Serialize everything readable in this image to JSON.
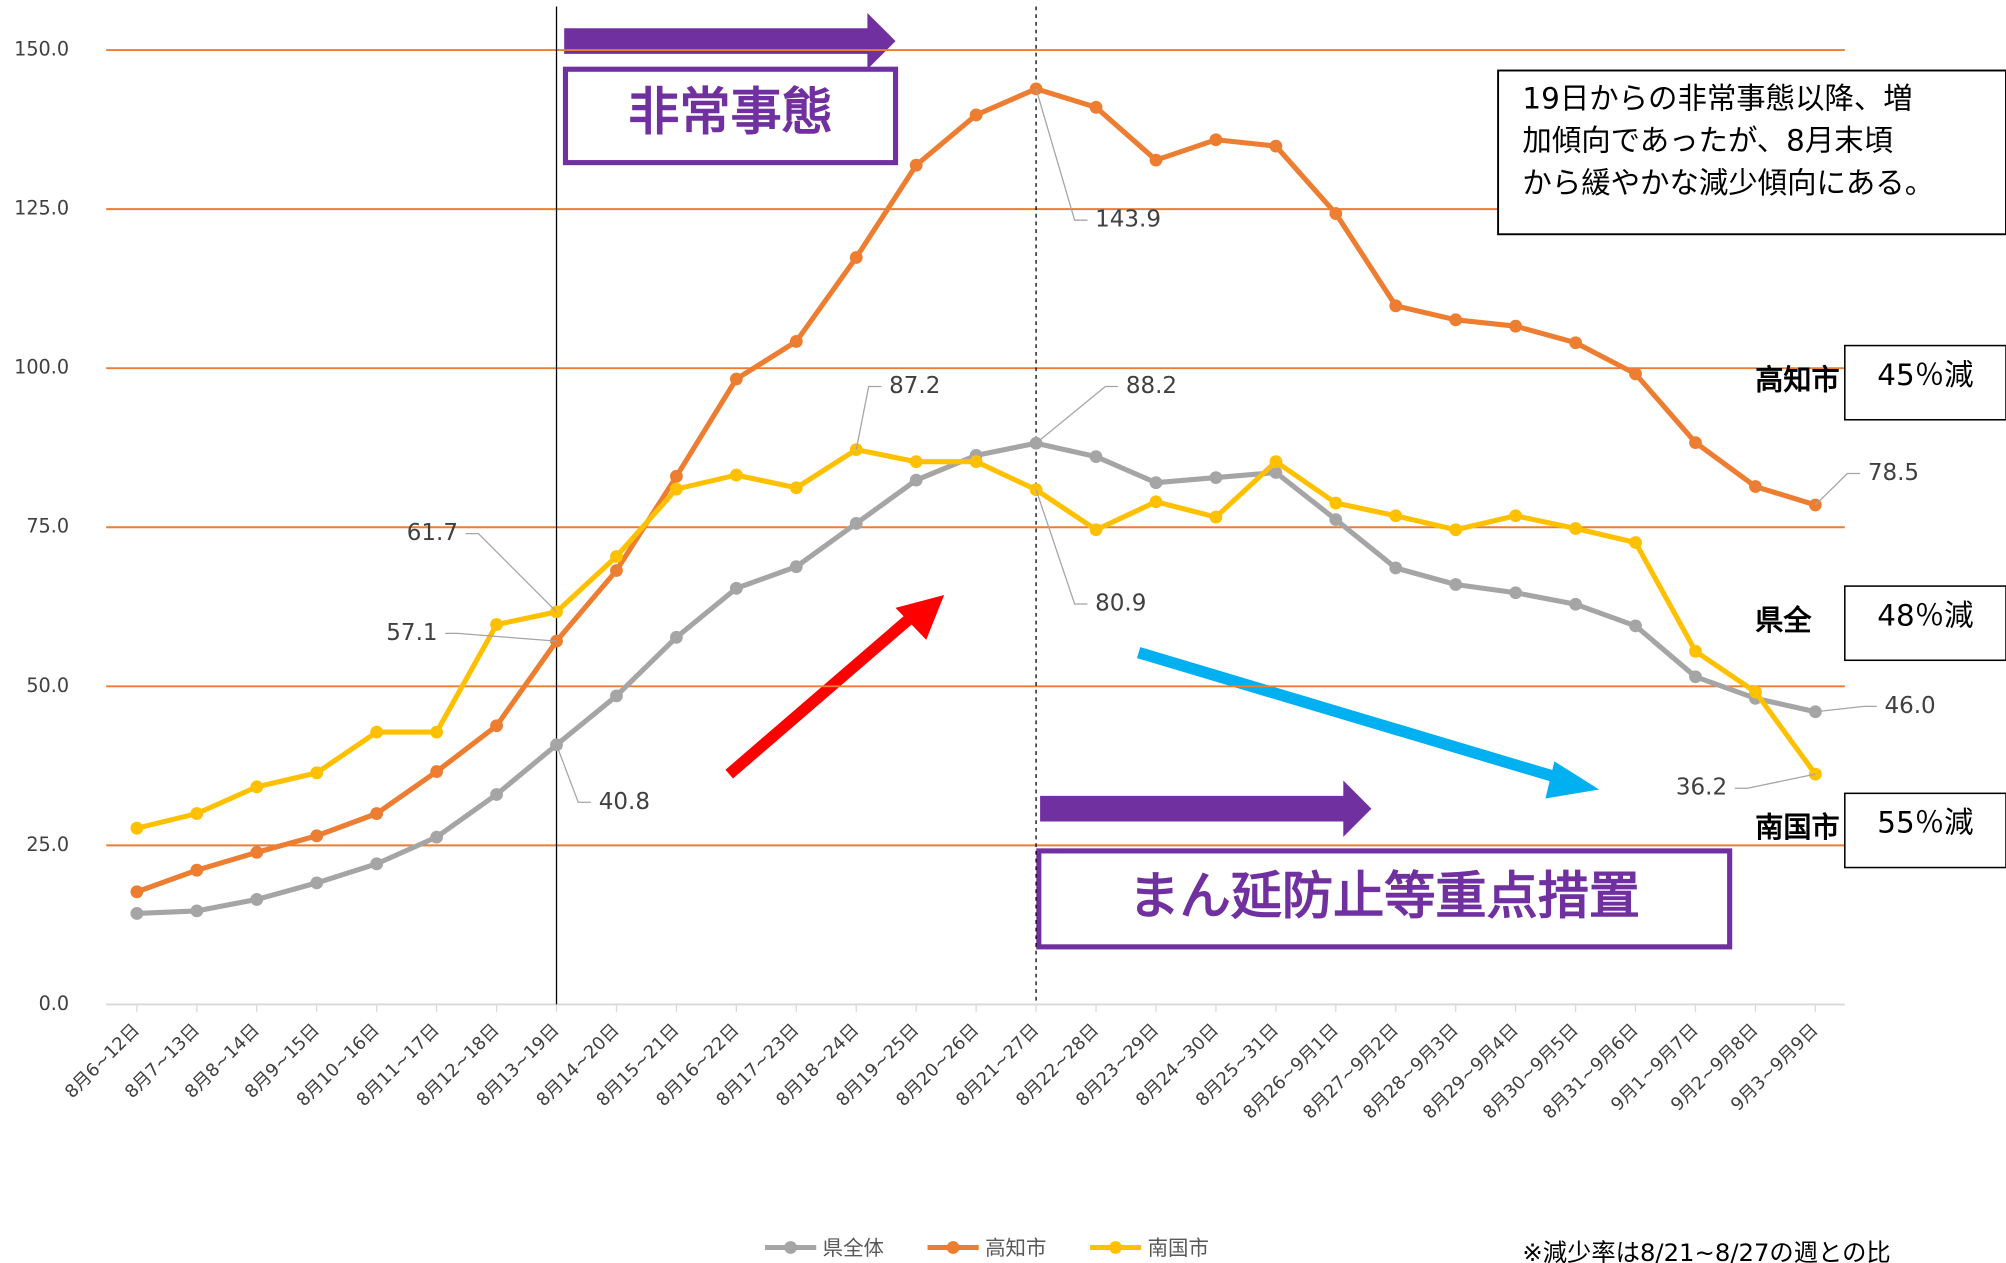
{
  "chart_data": {
    "type": "line",
    "categories": [
      "8月6~12日",
      "8月7~13日",
      "8月8~14日",
      "8月9~15日",
      "8月10~16日",
      "8月11~17日",
      "8月12~18日",
      "8月13~19日",
      "8月14~20日",
      "8月15~21日",
      "8月16~22日",
      "8月17~23日",
      "8月18~24日",
      "8月19~25日",
      "8月20~26日",
      "8月21~27日",
      "8月22~28日",
      "8月23~29日",
      "8月24~30日",
      "8月25~31日",
      "8月26~9月1日",
      "8月27~9月2日",
      "8月28~9月3日",
      "8月29~9月4日",
      "8月30~9月5日",
      "8月31~9月6日",
      "9月1~9月7日",
      "9月2~9月8日",
      "9月3~9月9日"
    ],
    "series": [
      {
        "name": "県全体",
        "color": "#a5a5a5",
        "values": [
          14.3,
          14.7,
          16.5,
          19.1,
          22.1,
          26.3,
          33.0,
          40.8,
          48.5,
          57.7,
          65.4,
          68.8,
          75.6,
          82.4,
          86.3,
          88.2,
          86.1,
          82.0,
          82.8,
          83.6,
          76.2,
          68.6,
          66.0,
          64.7,
          62.9,
          59.5,
          51.5,
          48.1,
          46.0
        ],
        "value_labels": [
          null,
          null,
          null,
          null,
          null,
          null,
          null,
          "40.8",
          null,
          null,
          null,
          null,
          null,
          null,
          null,
          "88.2",
          null,
          null,
          null,
          null,
          null,
          null,
          null,
          null,
          null,
          null,
          null,
          null,
          "46.0"
        ]
      },
      {
        "name": "高知市",
        "color": "#ed7d31",
        "values": [
          17.7,
          21.1,
          23.9,
          26.5,
          30.0,
          36.6,
          43.8,
          57.1,
          68.2,
          83.0,
          98.3,
          104.2,
          117.4,
          131.9,
          139.8,
          143.9,
          141.0,
          132.7,
          135.9,
          134.9,
          124.3,
          109.8,
          107.6,
          106.6,
          104.0,
          99.1,
          88.3,
          81.4,
          78.5
        ],
        "value_labels": [
          null,
          null,
          null,
          null,
          null,
          null,
          null,
          "57.1",
          null,
          null,
          null,
          null,
          null,
          null,
          null,
          "143.9",
          null,
          null,
          null,
          null,
          null,
          null,
          null,
          null,
          null,
          null,
          null,
          null,
          "78.5"
        ]
      },
      {
        "name": "南国市",
        "color": "#ffc000",
        "values": [
          27.7,
          30.0,
          34.2,
          36.4,
          42.8,
          42.8,
          59.7,
          61.7,
          70.4,
          81.0,
          83.2,
          81.2,
          87.2,
          85.3,
          85.3,
          80.9,
          74.6,
          79.0,
          76.6,
          85.3,
          78.8,
          76.8,
          74.6,
          76.8,
          74.8,
          72.6,
          55.5,
          49.1,
          36.2
        ],
        "value_labels": [
          null,
          null,
          null,
          null,
          null,
          null,
          null,
          "61.7",
          null,
          null,
          null,
          null,
          "87.2",
          null,
          null,
          "80.9",
          null,
          null,
          null,
          null,
          null,
          null,
          null,
          null,
          null,
          null,
          null,
          null,
          "36.2"
        ]
      }
    ],
    "ylim": [
      0,
      150
    ],
    "yticks": [
      {
        "value": 0,
        "label": "0.0"
      },
      {
        "value": 25,
        "label": "25.0"
      },
      {
        "value": 50,
        "label": "50.0"
      },
      {
        "value": 75,
        "label": "75.0"
      },
      {
        "value": 100,
        "label": "100.0"
      },
      {
        "value": 125,
        "label": "125.0"
      },
      {
        "value": 150,
        "label": "150.0"
      }
    ],
    "grid": true,
    "grid_color": "#ed7d31",
    "legend": "bottom",
    "annotations": {
      "emergency": "非常事態",
      "priority_measures": "まん延防止等重点措置",
      "note_lines": [
        "19日からの非常事態以降、増",
        "加傾向であったが、8月末頃",
        "から緩やかな減少傾向にある。"
      ],
      "side_labels": [
        "高知市",
        "県全",
        "南国市"
      ],
      "reductions": [
        "45％減",
        "48％減",
        "55％減"
      ],
      "footnote": "※減少率は8/21~8/27の週との比"
    }
  }
}
